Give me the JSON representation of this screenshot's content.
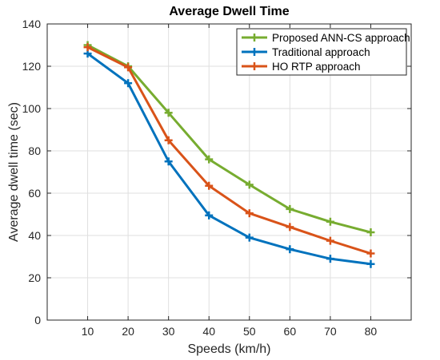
{
  "chart_data": {
    "type": "line",
    "title": "Average Dwell Time",
    "xlabel": "Speeds (km/h)",
    "ylabel": "Average dwell time (sec)",
    "xlim": [
      0,
      90
    ],
    "ylim": [
      0,
      140
    ],
    "x": [
      10,
      20,
      30,
      40,
      50,
      60,
      70,
      80
    ],
    "xticks": [
      10,
      20,
      30,
      40,
      50,
      60,
      70,
      80
    ],
    "yticks": [
      0,
      20,
      40,
      60,
      80,
      100,
      120,
      140
    ],
    "grid": true,
    "legend_position": "top-right",
    "series": [
      {
        "name": "Proposed ANN-CS approach",
        "color": "#77ac30",
        "values": [
          130,
          120,
          98,
          76,
          64,
          52.5,
          46.5,
          41.5
        ]
      },
      {
        "name": "Traditional approach",
        "color": "#0072bd",
        "values": [
          126,
          112,
          75,
          49.5,
          39,
          33.5,
          29,
          26.5
        ]
      },
      {
        "name": "HO RTP approach",
        "color": "#d95319",
        "values": [
          129,
          119.5,
          85,
          63.5,
          50.5,
          44,
          37.5,
          31.5
        ]
      }
    ]
  }
}
